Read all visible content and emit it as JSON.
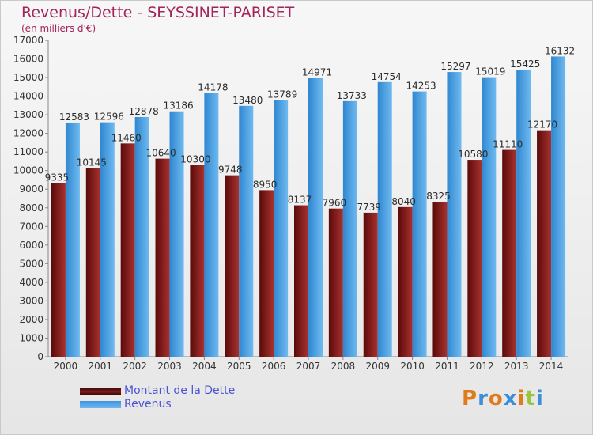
{
  "chart_data": {
    "type": "bar",
    "title": "Revenus/Dette - SEYSSINET-PARISET",
    "subtitle": "(en milliers d'€)",
    "categories": [
      "2000",
      "2001",
      "2002",
      "2003",
      "2004",
      "2005",
      "2006",
      "2007",
      "2008",
      "2009",
      "2010",
      "2011",
      "2012",
      "2013",
      "2014"
    ],
    "series": [
      {
        "name": "Montant de la Dette",
        "color": "#7a1c1c",
        "values": [
          9335,
          10145,
          11460,
          10640,
          10300,
          9748,
          8950,
          8137,
          7960,
          7739,
          8040,
          8325,
          10580,
          11110,
          12170
        ],
        "labels": [
          "9335",
          "10145",
          "11460",
          "10640",
          "10300",
          "9748",
          "8950",
          "8137",
          "7960",
          "7739",
          "8040",
          "8325",
          "10580",
          "11110",
          "12170"
        ]
      },
      {
        "name": "Revenus",
        "color": "#4ea3e2",
        "values": [
          12583,
          12596,
          12878,
          13186,
          14178,
          13480,
          13789,
          14971,
          13733,
          14754,
          14253,
          15297,
          15019,
          15425,
          16132
        ],
        "labels": [
          "12583",
          "12596",
          "12878",
          "13186",
          "14178",
          "13480",
          "13789",
          "14971",
          "13733",
          "14754",
          "14253",
          "15297",
          "15019",
          "15425",
          "16132"
        ]
      }
    ],
    "ylim": [
      0,
      17000
    ],
    "yticks": [
      0,
      1000,
      2000,
      3000,
      4000,
      5000,
      6000,
      7000,
      8000,
      9000,
      10000,
      11000,
      12000,
      13000,
      14000,
      15000,
      16000,
      17000
    ],
    "grid": false,
    "legend": "bottom-left"
  },
  "logo": {
    "text": "Proxiti"
  }
}
